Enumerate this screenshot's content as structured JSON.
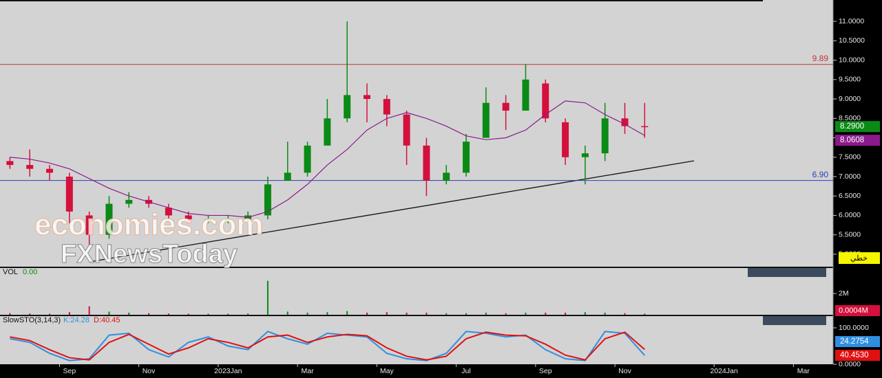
{
  "chart_data": [
    {
      "type": "candlestick",
      "categories": [
        null,
        null,
        null,
        "Sep",
        null,
        null,
        null,
        "Nov",
        null,
        null,
        null,
        "2023Jan",
        null,
        null,
        null,
        "Mar",
        null,
        null,
        null,
        "May",
        null,
        null,
        null,
        "Jul",
        null,
        null,
        null,
        "Sep",
        null,
        null,
        null,
        "Nov",
        null,
        null,
        null,
        null,
        "2024Jan",
        null,
        null,
        null,
        "Mar",
        null
      ],
      "open": [
        7.4,
        7.3,
        7.2,
        7.0,
        6.0,
        5.5,
        6.3,
        6.4,
        6.2,
        6.0,
        5.9,
        5.9,
        5.9,
        6.0,
        6.9,
        7.1,
        7.8,
        8.5,
        9.1,
        9.0,
        8.6,
        7.8,
        6.9,
        7.1,
        8.0,
        8.9,
        8.7,
        9.4,
        8.4,
        7.5,
        7.6,
        8.5,
        8.3,
        null,
        null,
        null,
        null,
        null,
        null,
        null,
        null,
        null
      ],
      "high": [
        7.5,
        7.7,
        7.3,
        7.1,
        6.1,
        6.5,
        6.6,
        6.5,
        6.3,
        6.1,
        6.0,
        6.0,
        6.1,
        7.0,
        7.9,
        7.9,
        9.0,
        11.0,
        9.4,
        9.1,
        8.7,
        8.0,
        7.3,
        8.1,
        9.3,
        9.1,
        9.9,
        9.5,
        8.5,
        7.8,
        8.9,
        8.9,
        8.9,
        null,
        null,
        null,
        null,
        null,
        null,
        null,
        null,
        null
      ],
      "low": [
        7.2,
        7.0,
        6.9,
        5.8,
        5.2,
        5.4,
        6.2,
        6.2,
        5.9,
        5.8,
        5.8,
        5.8,
        5.8,
        5.9,
        6.9,
        7.0,
        7.8,
        8.4,
        8.4,
        8.3,
        7.3,
        6.5,
        6.8,
        7.0,
        8.0,
        8.2,
        8.7,
        8.4,
        7.3,
        6.8,
        7.4,
        8.1,
        8.0,
        null,
        null,
        null,
        null,
        null,
        null,
        null,
        null,
        null
      ],
      "close": [
        7.3,
        7.2,
        7.1,
        6.1,
        5.5,
        6.3,
        6.4,
        6.3,
        6.0,
        5.9,
        5.9,
        5.9,
        6.0,
        6.8,
        7.1,
        7.8,
        8.5,
        9.1,
        9.0,
        8.6,
        7.8,
        6.9,
        7.1,
        7.9,
        8.9,
        8.7,
        9.5,
        8.5,
        7.5,
        7.6,
        8.5,
        8.3,
        8.29,
        null,
        null,
        null,
        null,
        null,
        null,
        null,
        null,
        null
      ],
      "up_color": "#0b8a16",
      "down_color": "#d4103c",
      "ma": [
        7.5,
        7.45,
        7.35,
        7.2,
        6.95,
        6.7,
        6.5,
        6.35,
        6.2,
        6.05,
        6.0,
        6.0,
        5.95,
        6.1,
        6.4,
        6.8,
        7.3,
        7.7,
        8.2,
        8.5,
        8.65,
        8.5,
        8.3,
        8.05,
        7.95,
        8.0,
        8.2,
        8.6,
        8.95,
        8.9,
        8.6,
        8.35,
        8.06,
        null,
        null,
        null,
        null,
        null,
        null,
        null,
        null,
        null
      ],
      "ma_color": "#8b1a8b",
      "ylim": [
        4.68,
        11.55
      ],
      "yticks": [
        {
          "value": 11,
          "label": "11.0000"
        },
        {
          "value": 10.5,
          "label": "10.5000"
        },
        {
          "value": 10,
          "label": "10.0000"
        },
        {
          "value": 9.5,
          "label": "9.5000"
        },
        {
          "value": 9,
          "label": "9.0000"
        },
        {
          "value": 8.5,
          "label": "8.5000"
        },
        {
          "value": 8,
          "label": "8.0000"
        },
        {
          "value": 7.5,
          "label": "7.5000"
        },
        {
          "value": 7,
          "label": "7.0000"
        },
        {
          "value": 6.5,
          "label": "6.5000"
        },
        {
          "value": 6,
          "label": "6.0000"
        },
        {
          "value": 5.5,
          "label": "5.5000"
        },
        {
          "value": 5,
          "label": "5.0000"
        }
      ],
      "levels": [
        {
          "value": 9.89,
          "label": "9.89",
          "color": "#c8323c"
        },
        {
          "value": 6.9,
          "label": "6.90",
          "color": "#2a3fb8"
        }
      ],
      "close_box": "8.2900",
      "ma_box": "8.0608",
      "chart_style_box": "خطي",
      "watermark": [
        "economies.com",
        "FXNewsToday"
      ]
    },
    {
      "type": "bar",
      "title": "VOL",
      "title_value": "0.00",
      "values": [
        0.15,
        0.12,
        0.1,
        0.25,
        0.8,
        0.3,
        0.2,
        0.15,
        0.12,
        0.1,
        0.1,
        0.1,
        0.12,
        3.2,
        0.3,
        0.2,
        0.25,
        0.35,
        0.2,
        0.25,
        0.2,
        0.2,
        0.15,
        0.15,
        0.2,
        0.15,
        0.2,
        0.2,
        0.2,
        0.25,
        0.2,
        0.15,
        0.1,
        null,
        null,
        null,
        null,
        null,
        null,
        null,
        null,
        null
      ],
      "ylim": [
        0,
        4.4
      ],
      "yticks": [
        {
          "value": 2,
          "label": "2M"
        }
      ],
      "last_box": "0.0004M"
    },
    {
      "type": "line",
      "title": "SlowSTO(3,14,3)",
      "k_label": "K:24.28",
      "d_label": "D:40.45",
      "series": [
        {
          "color": "#2e8fe0",
          "values": [
            70,
            60,
            30,
            10,
            15,
            80,
            85,
            40,
            20,
            60,
            75,
            50,
            40,
            90,
            70,
            55,
            85,
            80,
            75,
            30,
            15,
            10,
            30,
            90,
            85,
            75,
            80,
            40,
            15,
            10,
            90,
            85,
            24.2754,
            null,
            null,
            null,
            null,
            null,
            null,
            null,
            null,
            null
          ],
          "box": "24.2754"
        },
        {
          "color": "#e01010",
          "values": [
            75,
            65,
            40,
            18,
            12,
            60,
            82,
            55,
            28,
            45,
            70,
            60,
            45,
            75,
            80,
            60,
            75,
            82,
            78,
            45,
            22,
            12,
            22,
            70,
            88,
            80,
            78,
            55,
            25,
            12,
            70,
            88,
            40.453,
            null,
            null,
            null,
            null,
            null,
            null,
            null,
            null,
            null
          ],
          "box": "40.4530"
        }
      ],
      "ylim": [
        0,
        132
      ],
      "yticks": [
        {
          "value": 100,
          "label": "100.0000"
        },
        {
          "value": 0,
          "label": "0.0000"
        }
      ]
    }
  ]
}
